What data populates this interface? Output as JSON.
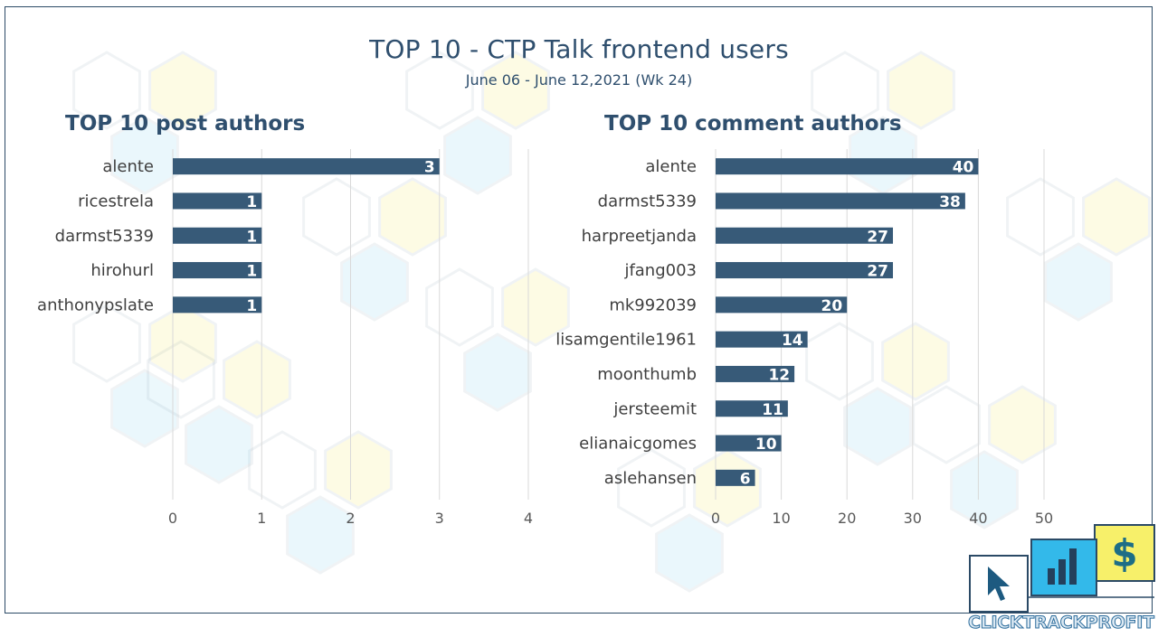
{
  "header": {
    "title": "TOP 10 - CTP Talk frontend users",
    "subtitle": "June 06 - June 12,2021 (Wk 24)"
  },
  "brand": {
    "text": "CLICKTRACKPROFIT"
  },
  "colors": {
    "bar": "#375a78",
    "grid": "#d9d9d9",
    "text": "#404040",
    "title": "#2f4f6e"
  },
  "chart_data": [
    {
      "type": "bar",
      "orientation": "horizontal",
      "title": "TOP 10 post authors",
      "categories": [
        "alente",
        "ricestrela",
        "darmst5339",
        "hirohurl",
        "anthonypslate"
      ],
      "values": [
        3,
        1,
        1,
        1,
        1
      ],
      "xlim": [
        0,
        4
      ],
      "xticks": [
        0,
        1,
        2,
        3,
        4
      ],
      "grid": true,
      "data_labels": true
    },
    {
      "type": "bar",
      "orientation": "horizontal",
      "title": "TOP 10 comment authors",
      "categories": [
        "alente",
        "darmst5339",
        "harpreetjanda",
        "jfang003",
        "mk992039",
        "lisamgentile1961",
        "moonthumb",
        "jersteemit",
        "elianaicgomes",
        "aslehansen"
      ],
      "values": [
        40,
        38,
        27,
        27,
        20,
        14,
        12,
        11,
        10,
        6
      ],
      "xlim": [
        0,
        50
      ],
      "xticks": [
        0,
        10,
        20,
        30,
        40,
        50
      ],
      "grid": true,
      "data_labels": true
    }
  ]
}
